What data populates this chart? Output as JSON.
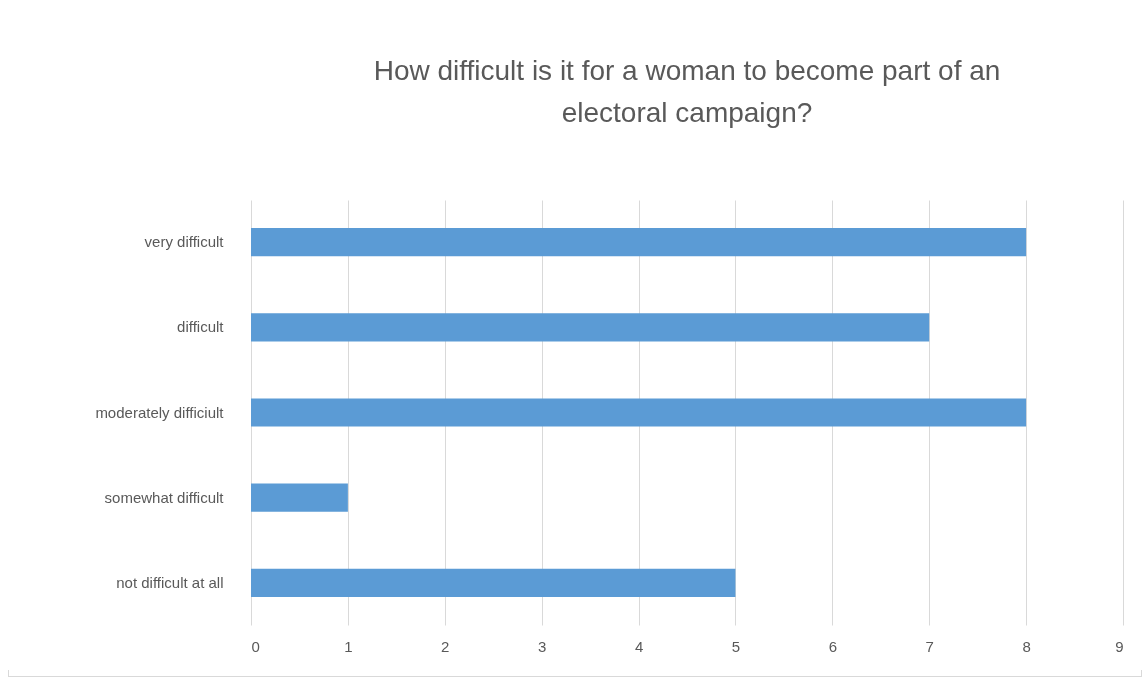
{
  "chart_data": {
    "type": "bar",
    "orientation": "horizontal",
    "title": "How difficult is it for a woman to become part of an electoral campaign?",
    "categories": [
      "very difficult",
      "difficult",
      "moderately difficiult",
      "somewhat difficult",
      "not difficult at all"
    ],
    "values": [
      8,
      7,
      8,
      1,
      5
    ],
    "color": "#5b9bd5",
    "xlim": [
      0,
      9
    ],
    "xticks": [
      0,
      1,
      2,
      3,
      4,
      5,
      6,
      7,
      8,
      9
    ],
    "grid": "x"
  }
}
